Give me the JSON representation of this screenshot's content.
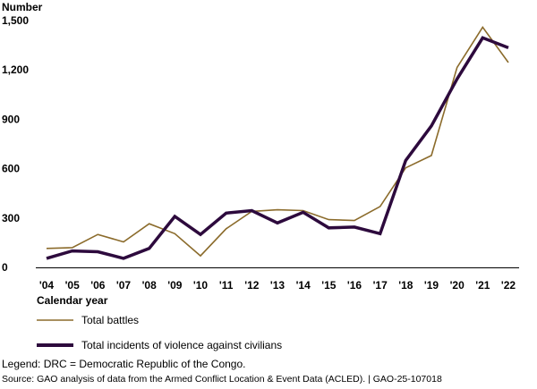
{
  "chart_data": {
    "type": "line",
    "ylabel": "Number",
    "xlabel": "Calendar year",
    "categories": [
      "'04",
      "'05",
      "'06",
      "'07",
      "'08",
      "'09",
      "'10",
      "'11",
      "'12",
      "'13",
      "'14",
      "'15",
      "'16",
      "'17",
      "'18",
      "'19",
      "'20",
      "'21",
      "'22"
    ],
    "ylim": [
      0,
      1500
    ],
    "yticks": [
      "0",
      "300",
      "600",
      "900",
      "1,200",
      "1,500"
    ],
    "ytick_values": [
      0,
      300,
      600,
      900,
      1200,
      1500
    ],
    "grid": false,
    "legend_position": "bottom-left",
    "series": [
      {
        "name": "Total battles",
        "color": "#8b6b2b",
        "style": "thin",
        "values": [
          115,
          120,
          200,
          155,
          265,
          205,
          70,
          235,
          340,
          350,
          345,
          290,
          285,
          370,
          605,
          680,
          1215,
          1460,
          1245
        ]
      },
      {
        "name": "Total incidents of violence against civilians",
        "color": "#2d0a3d",
        "style": "thick",
        "values": [
          55,
          100,
          95,
          55,
          115,
          310,
          200,
          330,
          345,
          270,
          335,
          240,
          245,
          205,
          650,
          860,
          1145,
          1395,
          1335
        ]
      }
    ]
  },
  "notes": {
    "legend": "Legend: DRC = Democratic Republic of the Congo.",
    "source": "Source: GAO analysis of data from the Armed Conflict Location & Event Data (ACLED).  |  GAO-25-107018"
  }
}
